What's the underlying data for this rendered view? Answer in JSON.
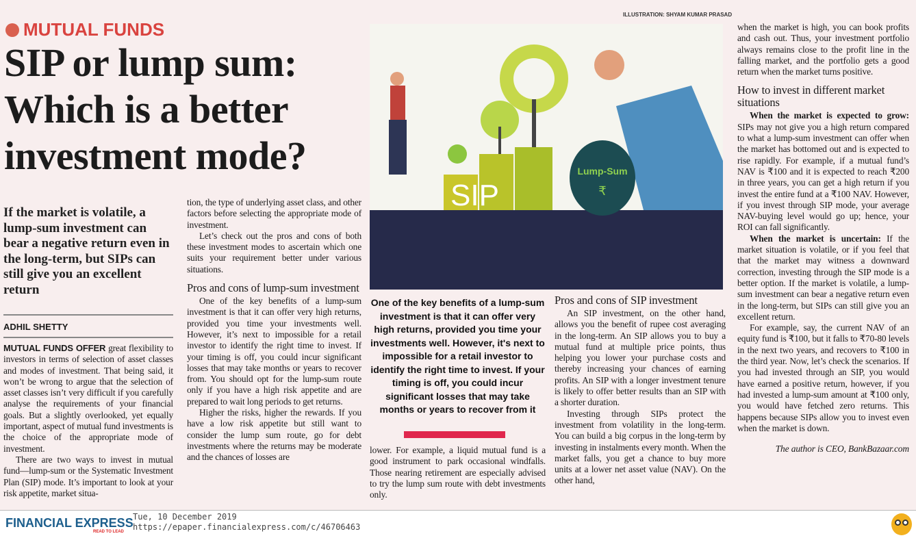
{
  "kicker": "MUTUAL FUNDS",
  "headline": "SIP or lump sum: Which is a better investment mode?",
  "illustration_credit": "ILLUSTRATION: SHYAM KUMAR PRASAD",
  "illustration": {
    "bars_text": "SIP",
    "bag_label": "Lump-Sum",
    "bag_symbol": "₹"
  },
  "standfirst": "If the market is volatile, a lump-sum investment can bear a negative return even in the long-term, but SIPs can still give you an excellent return",
  "byline": "ADHIL SHETTY",
  "col1": {
    "lead": "MUTUAL FUNDS OFFER",
    "p1": " great flexibility to investors in terms of selection of asset classes and modes of investment. That being said, it won’t be wrong to argue that the selection of asset classes isn’t very difficult if you carefully analyse the requirements of your financial goals. But a slightly overlooked, yet equally important, aspect of mutual fund investments is the choice of the appropriate mode of investment.",
    "p2": "There are two ways to invest in mutual fund—lump-sum or the Systematic Investment Plan (SIP) mode. It’s important to look at your risk appetite, market situa-"
  },
  "col2": {
    "p1": "tion, the type of underlying asset class, and other factors before selecting the appropriate mode of investment.",
    "p2": "Let’s check out the pros and cons of both these investment modes to ascertain which one suits your requirement better under various situations.",
    "h1": "Pros and cons of lump-sum investment",
    "p3": "One of the key benefits of a lump-sum investment is that it can offer very high returns, provided you time your investments well. However, it’s next to impossible for a retail investor to identify the right time to invest. If your timing is off, you could incur significant losses that may take months or years to recover from. You should opt for the lump-sum route only if you have a high risk appetite and are prepared to wait long periods to get returns.",
    "p4": "Higher the risks, higher the rewards. If you have a low risk appetite but still want to consider the lump sum route, go for debt investments where the returns may be moderate and the chances of losses are"
  },
  "pull_quote": "One of the key benefits of a lump-sum investment is that it can offer very high returns, provided you time your investments well. However, it's next to impossible for a retail investor to identify the right time to invest. If your timing is off, you could incur significant losses that may take months or years to recover from it",
  "col3": {
    "p1": "lower. For example, a liquid mutual fund is a good instrument to park occasional windfalls. Those nearing retirement are especially advised to try the lump sum route with debt investments only."
  },
  "col4": {
    "h1": "Pros and cons of SIP investment",
    "p1": "An SIP investment, on the other hand, allows you the benefit of rupee cost averaging in the long-term. An SIP allows you to buy a mutual fund at multiple price points, thus helping you lower your purchase costs and thereby increasing your chances of earning profits. An SIP with a longer investment tenure is likely to offer better results than an SIP with a shorter duration.",
    "p2": "Investing through SIPs protect the investment from volatility in the long-term. You can build a big corpus in the long-term by investing in instalments every month. When the market falls, you get a chance to buy more units at a lower net asset value (NAV). On the other hand,"
  },
  "col5": {
    "p1": "when the market is high, you can book profits and cash out. Thus, your investment portfolio always remains close to the profit line in the falling market, and the portfolio gets a good return when the market turns positive.",
    "h1": "How to invest in different market situations",
    "lead2": "When the market is expected to grow:",
    "p2": " SIPs may not give you a high return compared to what a lump-sum investment can offer when the market has bottomed out and is expected to rise rapidly. For example, if a mutual fund’s NAV is ₹100 and it is expected to reach ₹200 in three years, you can get a high return if you invest the entire fund at a ₹100 NAV. However, if you invest through SIP mode, your average NAV-buying level would go up; hence, your ROI can fall significantly.",
    "lead3": "When the market is uncertain:",
    "p3": " If the market situation is volatile, or if you feel that that the market may witness a downward correction, investing through the SIP mode is a better option. If the market is volatile, a lump-sum investment can bear a negative return even in the long-term, but SIPs can still give you an excellent return.",
    "p4": "For example, say, the current NAV of an equity fund is ₹100, but it falls to ₹70-80 levels in the next two years, and recovers to ₹100 in the third year. Now, let’s check the scenarios. If you had invested through an SIP, you would have earned a positive return, however, if you had invested a lump-sum amount at ₹100 only, you would have fetched zero returns. This happens because SIPs allow you to invest even when the market is down.",
    "signoff": "The author is CEO, BankBazaar.com"
  },
  "footer": {
    "logo": "FINANCIAL EXPRESS",
    "tagline": "READ TO LEAD",
    "date": "Tue, 10 December 2019",
    "url": "https://epaper.financialexpress.com/c/46706463"
  },
  "colors": {
    "kicker": "#d9433f",
    "accent_bar": "#e0274d",
    "logo": "#1c5e8c",
    "page": "#f8eeee"
  }
}
